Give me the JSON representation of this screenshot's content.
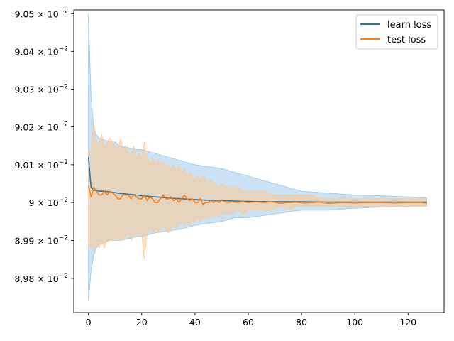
{
  "chart_data": {
    "type": "line",
    "title": "",
    "xlabel": "",
    "ylabel": "",
    "xlim": [
      -5.5,
      133.5
    ],
    "ylim": [
      0.08971,
      0.09051
    ],
    "yscale": "log",
    "grid": false,
    "legend_position": "top-right",
    "xticks": [
      0,
      20,
      40,
      60,
      80,
      100,
      120
    ],
    "xtick_labels": [
      "0",
      "20",
      "40",
      "60",
      "80",
      "100",
      "120"
    ],
    "yticks": [
      0.0898,
      0.0899,
      0.09,
      0.0901,
      0.0902,
      0.0903,
      0.0904,
      0.0905
    ],
    "ytick_labels": [
      {
        "mantissa": "8.98",
        "exp": "−2"
      },
      {
        "mantissa": "8.99",
        "exp": "−2"
      },
      {
        "mantissa": "9",
        "exp": "−2"
      },
      {
        "mantissa": "9.01",
        "exp": "−2"
      },
      {
        "mantissa": "9.02",
        "exp": "−2"
      },
      {
        "mantissa": "9.03",
        "exp": "−2"
      },
      {
        "mantissa": "9.04",
        "exp": "−2"
      },
      {
        "mantissa": "9.05",
        "exp": "−2"
      }
    ],
    "series": [
      {
        "name": "learn loss",
        "color": "#1f77b4",
        "band_color": "#9ecae9",
        "x": [
          0,
          1,
          2,
          3,
          4,
          5,
          6,
          8,
          10,
          12,
          15,
          18,
          20,
          25,
          30,
          35,
          40,
          45,
          50,
          55,
          60,
          70,
          80,
          90,
          100,
          110,
          120,
          127
        ],
        "y": [
          0.09012,
          0.09004,
          0.090032,
          0.090032,
          0.09003,
          0.09003,
          0.09003,
          0.090028,
          0.090026,
          0.090024,
          0.090022,
          0.09002,
          0.090018,
          0.090015,
          0.090012,
          0.09001,
          0.090008,
          0.090006,
          0.090005,
          0.090004,
          0.090003,
          0.090002,
          0.090002,
          0.090001,
          0.090001,
          0.090001,
          0.090001,
          0.090001
        ],
        "lower": [
          0.08974,
          0.08982,
          0.08986,
          0.08988,
          0.08989,
          0.08989,
          0.089895,
          0.0899,
          0.0899,
          0.0899,
          0.089905,
          0.08991,
          0.08991,
          0.08992,
          0.089925,
          0.08993,
          0.08994,
          0.089945,
          0.08995,
          0.08996,
          0.08996,
          0.08997,
          0.08998,
          0.08998,
          0.089985,
          0.089988,
          0.08999,
          0.08999
        ],
        "upper": [
          0.0905,
          0.09028,
          0.0902,
          0.09018,
          0.09017,
          0.09017,
          0.090165,
          0.09016,
          0.09016,
          0.09015,
          0.090145,
          0.09014,
          0.09014,
          0.09013,
          0.09012,
          0.09011,
          0.0901,
          0.090095,
          0.09009,
          0.09008,
          0.09007,
          0.09005,
          0.09003,
          0.090025,
          0.09002,
          0.090018,
          0.090015,
          0.090012
        ]
      },
      {
        "name": "test loss",
        "color": "#ff7f0e",
        "band_color": "#ffc894",
        "x": [
          0,
          1,
          2,
          3,
          4,
          5,
          6,
          7,
          8,
          9,
          10,
          11,
          12,
          13,
          14,
          15,
          16,
          17,
          18,
          19,
          20,
          21,
          22,
          23,
          24,
          25,
          26,
          27,
          28,
          29,
          30,
          31,
          32,
          33,
          34,
          35,
          36,
          37,
          38,
          39,
          40,
          41,
          42,
          43,
          44,
          45,
          46,
          47,
          48,
          49,
          50,
          52,
          54,
          56,
          58,
          60,
          63,
          66,
          69,
          72,
          75,
          78,
          81,
          84,
          87,
          90,
          95,
          100,
          105,
          110,
          115,
          120,
          125,
          127
        ],
        "y": [
          0.090045,
          0.090015,
          0.09004,
          0.09003,
          0.09002,
          0.09002,
          0.09003,
          0.09002,
          0.09003,
          0.090025,
          0.09002,
          0.09001,
          0.09001,
          0.09002,
          0.09002,
          0.09002,
          0.09001,
          0.09002,
          0.090015,
          0.09001,
          0.09001,
          0.09002,
          0.090005,
          0.090015,
          0.09001,
          0.09,
          0.09,
          0.09001,
          0.09002,
          0.09001,
          0.09001,
          0.090015,
          0.090005,
          0.09001,
          0.09,
          0.09001,
          0.09002,
          0.09001,
          0.090005,
          0.09001,
          0.09,
          0.09,
          0.09001,
          0.089995,
          0.09,
          0.09,
          0.090005,
          0.09,
          0.090005,
          0.09,
          0.090005,
          0.09,
          0.090002,
          0.09,
          0.090003,
          0.09,
          0.090002,
          0.09,
          0.090002,
          0.089998,
          0.09,
          0.090001,
          0.089999,
          0.09,
          0.090001,
          0.089998,
          0.09,
          0.089999,
          0.09,
          0.09,
          0.089999,
          0.09,
          0.09,
          0.089998
        ],
        "lower": [
          0.08988,
          0.08989,
          0.08987,
          0.08989,
          0.08988,
          0.0899,
          0.08988,
          0.0899,
          0.0899,
          0.0899,
          0.08991,
          0.0899,
          0.08991,
          0.0899,
          0.08991,
          0.08992,
          0.0899,
          0.08991,
          0.08992,
          0.08991,
          0.08992,
          0.08985,
          0.08992,
          0.08993,
          0.08992,
          0.08993,
          0.08992,
          0.08993,
          0.08994,
          0.08993,
          0.08992,
          0.08993,
          0.08994,
          0.08993,
          0.08994,
          0.08995,
          0.08994,
          0.08995,
          0.08994,
          0.08995,
          0.08995,
          0.08996,
          0.08995,
          0.08996,
          0.08996,
          0.08996,
          0.08997,
          0.08996,
          0.08997,
          0.08996,
          0.08997,
          0.08997,
          0.08997,
          0.08998,
          0.08997,
          0.08998,
          0.08998,
          0.08998,
          0.08998,
          0.08999,
          0.08998,
          0.08999,
          0.08999,
          0.08999,
          0.08999,
          0.08999,
          0.08999,
          0.08999,
          0.08999,
          0.08999,
          0.08999,
          0.08999,
          0.08999,
          0.08999
        ],
        "upper": [
          0.09013,
          0.09014,
          0.09021,
          0.09015,
          0.09016,
          0.09018,
          0.09014,
          0.09016,
          0.09017,
          0.09016,
          0.09015,
          0.09013,
          0.09017,
          0.09014,
          0.09015,
          0.09013,
          0.09012,
          0.09015,
          0.09012,
          0.09013,
          0.09012,
          0.09016,
          0.09012,
          0.0901,
          0.09012,
          0.0901,
          0.09011,
          0.0901,
          0.09011,
          0.09009,
          0.0901,
          0.09009,
          0.0901,
          0.09008,
          0.0901,
          0.09008,
          0.09009,
          0.09007,
          0.09008,
          0.09007,
          0.09006,
          0.09007,
          0.09006,
          0.09007,
          0.09006,
          0.09005,
          0.09006,
          0.09005,
          0.09005,
          0.09004,
          0.09005,
          0.09004,
          0.09004,
          0.09004,
          0.09003,
          0.09003,
          0.09003,
          0.09003,
          0.09002,
          0.09002,
          0.09002,
          0.09002,
          0.09002,
          0.09002,
          0.09001,
          0.09001,
          0.09001,
          0.09001,
          0.09001,
          0.09001,
          0.09001,
          0.09001,
          0.09001,
          0.09001
        ]
      }
    ]
  }
}
